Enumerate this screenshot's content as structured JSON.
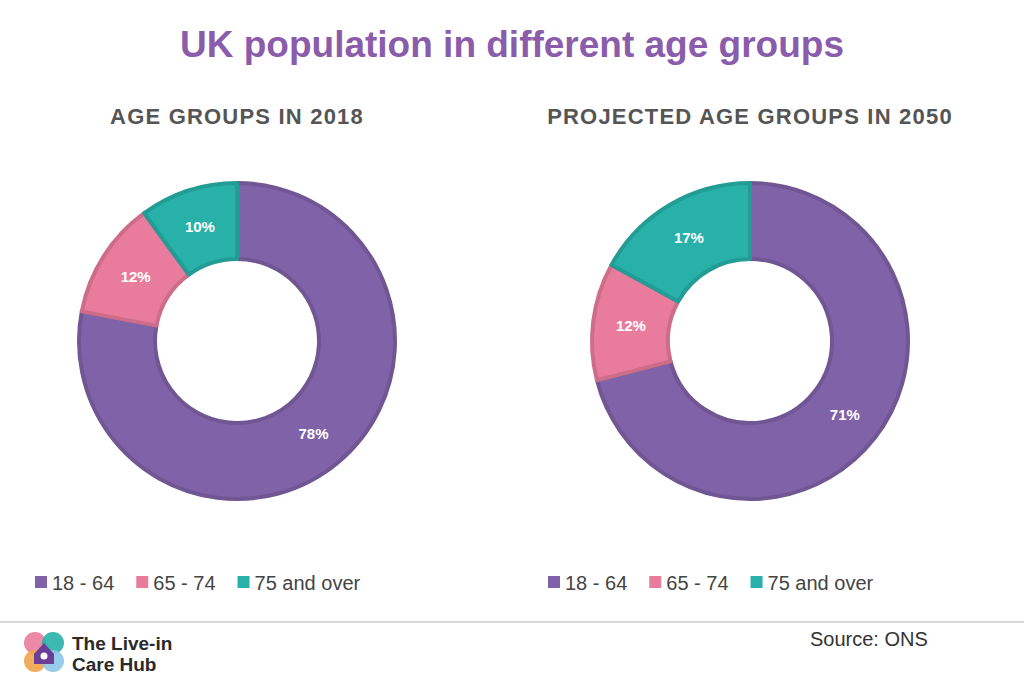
{
  "title": "UK population in different age groups",
  "source": "Source: ONS",
  "brand": [
    "The Live-in",
    "Care Hub"
  ],
  "chart_data": [
    {
      "type": "donut",
      "title": "AGE GROUPS IN 2018",
      "categories": [
        "18 - 64",
        "65 - 74",
        "75 and over"
      ],
      "values": [
        78,
        12,
        10
      ],
      "value_labels": [
        "78%",
        "12%",
        "10%"
      ],
      "colors": [
        "#8062a8",
        "#e97c9c",
        "#27b1a8"
      ],
      "data_labels": true,
      "legend": "bottom"
    },
    {
      "type": "donut",
      "title": "PROJECTED AGE GROUPS IN 2050",
      "categories": [
        "18 - 64",
        "65 - 74",
        "75 and over"
      ],
      "values": [
        71,
        12,
        17
      ],
      "value_labels": [
        "71%",
        "12%",
        "17%"
      ],
      "colors": [
        "#8062a8",
        "#e97c9c",
        "#27b1a8"
      ],
      "data_labels": true,
      "legend": "bottom"
    }
  ]
}
